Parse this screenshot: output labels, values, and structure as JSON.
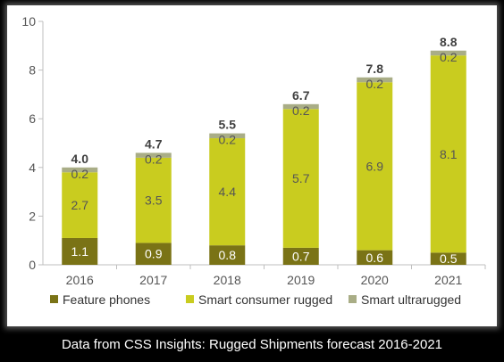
{
  "chart_data": {
    "type": "bar",
    "stacked": true,
    "categories": [
      "2016",
      "2017",
      "2018",
      "2019",
      "2020",
      "2021"
    ],
    "series": [
      {
        "name": "Feature phones",
        "values": [
          1.1,
          0.9,
          0.8,
          0.7,
          0.6,
          0.5
        ],
        "color": "#7a7316",
        "label_color": "#ffffff"
      },
      {
        "name": "Smart consumer rugged",
        "values": [
          2.7,
          3.5,
          4.4,
          5.7,
          6.9,
          8.1
        ],
        "color": "#c9cc1f",
        "label_color": "#555555"
      },
      {
        "name": "Smart ultrarugged",
        "values": [
          0.2,
          0.2,
          0.2,
          0.2,
          0.2,
          0.2
        ],
        "color": "#a9ad86",
        "label_color": "#555555"
      }
    ],
    "totals": [
      "4.0",
      "4.7",
      "5.5",
      "6.7",
      "7.8",
      "8.8"
    ],
    "ylim": [
      0,
      10
    ],
    "yticks": [
      0,
      2,
      4,
      6,
      8,
      10
    ],
    "grid": false,
    "legend": "bottom"
  },
  "caption": "Data from CSS Insights: Rugged Shipments forecast 2016-2021"
}
